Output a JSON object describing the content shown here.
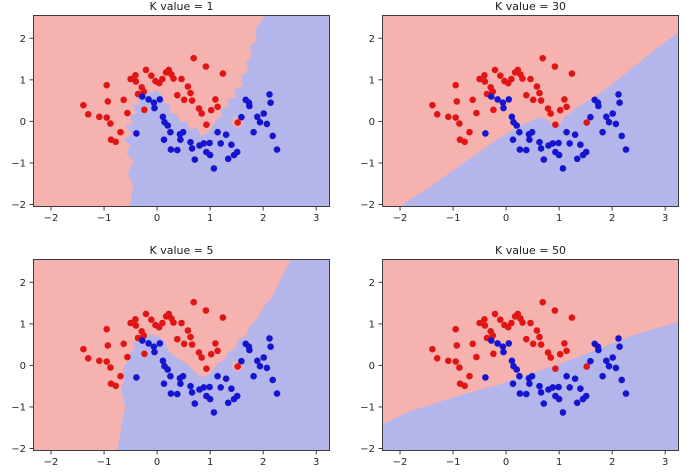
{
  "figure": {
    "background": "#ffffff"
  },
  "colors": {
    "region_red": "#f5b2ae",
    "region_blue": "#b4b5ea",
    "point_red": "#e01515",
    "point_blue": "#1515d0",
    "axis": "#3c3c3c",
    "tick_label": "#262626",
    "title": "#1c1c1c"
  },
  "axes": {
    "xlim": [
      -2.34,
      3.26
    ],
    "ylim": [
      -2.06,
      2.56
    ],
    "xtick_values": [
      -2,
      -1,
      0,
      1,
      2,
      3
    ],
    "xtick_labels": [
      "−2",
      "−1",
      "0",
      "1",
      "2",
      "3"
    ],
    "ytick_values": [
      -2,
      -1,
      0,
      1,
      2
    ],
    "ytick_labels": [
      "−2",
      "−1",
      "0",
      "1",
      "2"
    ],
    "grid": false
  },
  "chart_data": {
    "type": "scatter",
    "description": "KNN decision regions on two-moons data for four K values; light red/blue shading shows predicted class regions, dots are training points",
    "marker_radius_px": 3.3,
    "series": [
      {
        "name": "class-red",
        "color_key": "point_red",
        "points": [
          [
            -1.39,
            0.39
          ],
          [
            -1.3,
            0.17
          ],
          [
            -1.09,
            0.11
          ],
          [
            -0.95,
            0.09
          ],
          [
            -0.88,
            -0.05
          ],
          [
            -0.93,
            0.48
          ],
          [
            -0.95,
            0.87
          ],
          [
            -0.87,
            -0.44
          ],
          [
            -0.78,
            -0.49
          ],
          [
            -0.69,
            -0.26
          ],
          [
            -0.63,
            0.52
          ],
          [
            -0.56,
            0.2
          ],
          [
            -0.5,
            1.02
          ],
          [
            -0.41,
            1.11
          ],
          [
            -0.4,
            0.96
          ],
          [
            -0.36,
            0.66
          ],
          [
            -0.29,
            0.82
          ],
          [
            -0.25,
            0.72
          ],
          [
            -0.24,
            0.28
          ],
          [
            -0.21,
            1.24
          ],
          [
            -0.11,
            1.1
          ],
          [
            -0.03,
            0.97
          ],
          [
            0.04,
            0.92
          ],
          [
            0.1,
            1.02
          ],
          [
            0.17,
            1.18
          ],
          [
            0.22,
            1.24
          ],
          [
            0.27,
            1.13
          ],
          [
            0.31,
            1.03
          ],
          [
            0.38,
            0.63
          ],
          [
            0.46,
            1.02
          ],
          [
            0.51,
            0.52
          ],
          [
            0.58,
            0.84
          ],
          [
            0.63,
            0.68
          ],
          [
            0.66,
            0.5
          ],
          [
            0.69,
            1.52
          ],
          [
            0.79,
            0.31
          ],
          [
            0.84,
            0.19
          ],
          [
            0.92,
            1.32
          ],
          [
            0.93,
            -0.08
          ],
          [
            1.02,
            0.27
          ],
          [
            1.1,
            0.53
          ],
          [
            1.14,
            0.35
          ],
          [
            1.24,
            1.15
          ],
          [
            1.52,
            -0.03
          ]
        ]
      },
      {
        "name": "class-blue",
        "color_key": "point_blue",
        "points": [
          [
            -0.39,
            -0.29
          ],
          [
            -0.28,
            0.6
          ],
          [
            -0.16,
            0.53
          ],
          [
            -0.06,
            0.45
          ],
          [
            -0.05,
            0.32
          ],
          [
            0.05,
            0.53
          ],
          [
            0.11,
            0.11
          ],
          [
            0.13,
            -0.44
          ],
          [
            0.14,
            -0.02
          ],
          [
            0.2,
            -0.1
          ],
          [
            0.25,
            -0.26
          ],
          [
            0.26,
            -0.68
          ],
          [
            0.38,
            -0.69
          ],
          [
            0.43,
            -0.31
          ],
          [
            0.44,
            -0.44
          ],
          [
            0.49,
            -0.26
          ],
          [
            0.63,
            -0.5
          ],
          [
            0.66,
            -0.65
          ],
          [
            0.71,
            -0.92
          ],
          [
            0.8,
            -0.58
          ],
          [
            0.88,
            -0.53
          ],
          [
            0.93,
            -0.74
          ],
          [
            0.99,
            -0.52
          ],
          [
            1.0,
            -0.81
          ],
          [
            1.07,
            -1.13
          ],
          [
            1.14,
            -0.26
          ],
          [
            1.2,
            -0.53
          ],
          [
            1.3,
            -0.32
          ],
          [
            1.34,
            -0.9
          ],
          [
            1.4,
            -0.56
          ],
          [
            1.45,
            -0.81
          ],
          [
            1.51,
            -0.74
          ],
          [
            1.59,
            0.1
          ],
          [
            1.67,
            0.52
          ],
          [
            1.73,
            0.45
          ],
          [
            1.74,
            0.37
          ],
          [
            1.82,
            -0.26
          ],
          [
            1.89,
            0.11
          ],
          [
            1.94,
            -0.02
          ],
          [
            2.01,
            0.19
          ],
          [
            2.07,
            -0.06
          ],
          [
            2.12,
            0.65
          ],
          [
            2.14,
            0.45
          ],
          [
            2.18,
            -0.35
          ],
          [
            2.26,
            -0.68
          ]
        ]
      }
    ],
    "subplots": [
      {
        "id": "k1",
        "title": "K value = 1",
        "k": 1,
        "blue_region": [
          [
            -0.52,
            -2.06
          ],
          [
            -0.45,
            -1.6
          ],
          [
            -0.55,
            -1.25
          ],
          [
            -0.45,
            -0.95
          ],
          [
            -0.58,
            -0.75
          ],
          [
            -0.5,
            -0.6
          ],
          [
            -0.62,
            -0.45
          ],
          [
            -0.48,
            -0.3
          ],
          [
            -0.6,
            -0.12
          ],
          [
            -0.45,
            -0.05
          ],
          [
            -0.52,
            0.12
          ],
          [
            -0.38,
            0.2
          ],
          [
            -0.48,
            0.38
          ],
          [
            -0.32,
            0.42
          ],
          [
            -0.4,
            0.58
          ],
          [
            -0.28,
            0.75
          ],
          [
            -0.12,
            0.68
          ],
          [
            -0.02,
            0.75
          ],
          [
            0.1,
            0.62
          ],
          [
            0.13,
            0.45
          ],
          [
            0.26,
            0.4
          ],
          [
            0.22,
            0.22
          ],
          [
            0.36,
            0.18
          ],
          [
            0.42,
            0.02
          ],
          [
            0.56,
            -0.02
          ],
          [
            0.62,
            -0.2
          ],
          [
            0.74,
            -0.15
          ],
          [
            0.82,
            -0.35
          ],
          [
            0.95,
            -0.3
          ],
          [
            1.03,
            -0.15
          ],
          [
            1.12,
            0.05
          ],
          [
            1.22,
            0.12
          ],
          [
            1.2,
            0.3
          ],
          [
            1.35,
            0.35
          ],
          [
            1.32,
            0.52
          ],
          [
            1.48,
            0.58
          ],
          [
            1.45,
            0.78
          ],
          [
            1.62,
            0.85
          ],
          [
            1.58,
            1.1
          ],
          [
            1.72,
            1.2
          ],
          [
            1.68,
            1.45
          ],
          [
            1.78,
            1.55
          ],
          [
            1.75,
            1.8
          ],
          [
            1.88,
            1.95
          ],
          [
            1.85,
            2.2
          ],
          [
            2.04,
            2.56
          ],
          [
            3.26,
            2.56
          ],
          [
            3.26,
            -2.06
          ]
        ],
        "red_islands": [
          [
            [
              1.4,
              -0.02
            ],
            [
              1.5,
              -0.16
            ],
            [
              1.65,
              -0.06
            ],
            [
              1.56,
              0.1
            ],
            [
              1.44,
              0.1
            ]
          ],
          [
            [
              -0.32,
              0.28
            ],
            [
              -0.24,
              0.18
            ],
            [
              -0.14,
              0.29
            ],
            [
              -0.23,
              0.38
            ]
          ]
        ]
      },
      {
        "id": "k30",
        "title": "K value = 30",
        "k": 30,
        "blue_region": [
          [
            -2.02,
            -2.06
          ],
          [
            -1.43,
            -1.57
          ],
          [
            -0.8,
            -1.0
          ],
          [
            -0.17,
            -0.44
          ],
          [
            0.26,
            -0.11
          ],
          [
            0.5,
            0.03
          ],
          [
            0.68,
            0.1
          ],
          [
            0.8,
            0.02
          ],
          [
            0.9,
            -0.12
          ],
          [
            1.0,
            -0.08
          ],
          [
            1.1,
            0.1
          ],
          [
            1.3,
            0.3
          ],
          [
            1.55,
            0.5
          ],
          [
            1.85,
            0.75
          ],
          [
            2.1,
            1.0
          ],
          [
            2.45,
            1.35
          ],
          [
            2.8,
            1.72
          ],
          [
            3.1,
            2.0
          ],
          [
            3.26,
            2.15
          ],
          [
            3.26,
            -2.06
          ]
        ],
        "red_islands": []
      },
      {
        "id": "k5",
        "title": "K value = 5",
        "k": 5,
        "blue_region": [
          [
            -0.75,
            -2.06
          ],
          [
            -0.68,
            -1.5
          ],
          [
            -0.6,
            -1.0
          ],
          [
            -0.68,
            -0.6
          ],
          [
            -0.62,
            -0.3
          ],
          [
            -0.65,
            -0.1
          ],
          [
            -0.55,
            0.1
          ],
          [
            -0.55,
            0.25
          ],
          [
            -0.42,
            0.4
          ],
          [
            -0.45,
            0.55
          ],
          [
            -0.3,
            0.7
          ],
          [
            -0.12,
            0.75
          ],
          [
            0.05,
            0.68
          ],
          [
            0.15,
            0.55
          ],
          [
            0.2,
            0.38
          ],
          [
            0.3,
            0.25
          ],
          [
            0.42,
            0.15
          ],
          [
            0.55,
            0.05
          ],
          [
            0.65,
            -0.08
          ],
          [
            0.78,
            -0.25
          ],
          [
            0.92,
            -0.28
          ],
          [
            1.05,
            -0.12
          ],
          [
            1.15,
            0.05
          ],
          [
            1.28,
            0.15
          ],
          [
            1.35,
            0.32
          ],
          [
            1.48,
            0.42
          ],
          [
            1.52,
            0.6
          ],
          [
            1.68,
            0.72
          ],
          [
            1.75,
            0.95
          ],
          [
            1.9,
            1.15
          ],
          [
            2.0,
            1.4
          ],
          [
            2.18,
            1.65
          ],
          [
            2.3,
            2.0
          ],
          [
            2.42,
            2.3
          ],
          [
            2.54,
            2.56
          ],
          [
            3.26,
            2.56
          ],
          [
            3.26,
            -2.06
          ]
        ],
        "red_islands": [
          [
            [
              1.4,
              -0.02
            ],
            [
              1.5,
              -0.16
            ],
            [
              1.65,
              -0.06
            ],
            [
              1.56,
              0.1
            ],
            [
              1.44,
              0.1
            ]
          ]
        ]
      },
      {
        "id": "k50",
        "title": "K value = 50",
        "k": 50,
        "blue_region": [
          [
            -2.34,
            -1.42
          ],
          [
            -1.8,
            -1.1
          ],
          [
            -1.2,
            -0.85
          ],
          [
            -0.6,
            -0.62
          ],
          [
            -0.1,
            -0.45
          ],
          [
            0.4,
            -0.22
          ],
          [
            0.9,
            -0.02
          ],
          [
            1.3,
            0.18
          ],
          [
            1.8,
            0.42
          ],
          [
            2.3,
            0.68
          ],
          [
            2.8,
            0.88
          ],
          [
            3.26,
            1.05
          ],
          [
            3.26,
            -2.06
          ],
          [
            -2.34,
            -2.06
          ]
        ],
        "red_islands": []
      }
    ]
  }
}
